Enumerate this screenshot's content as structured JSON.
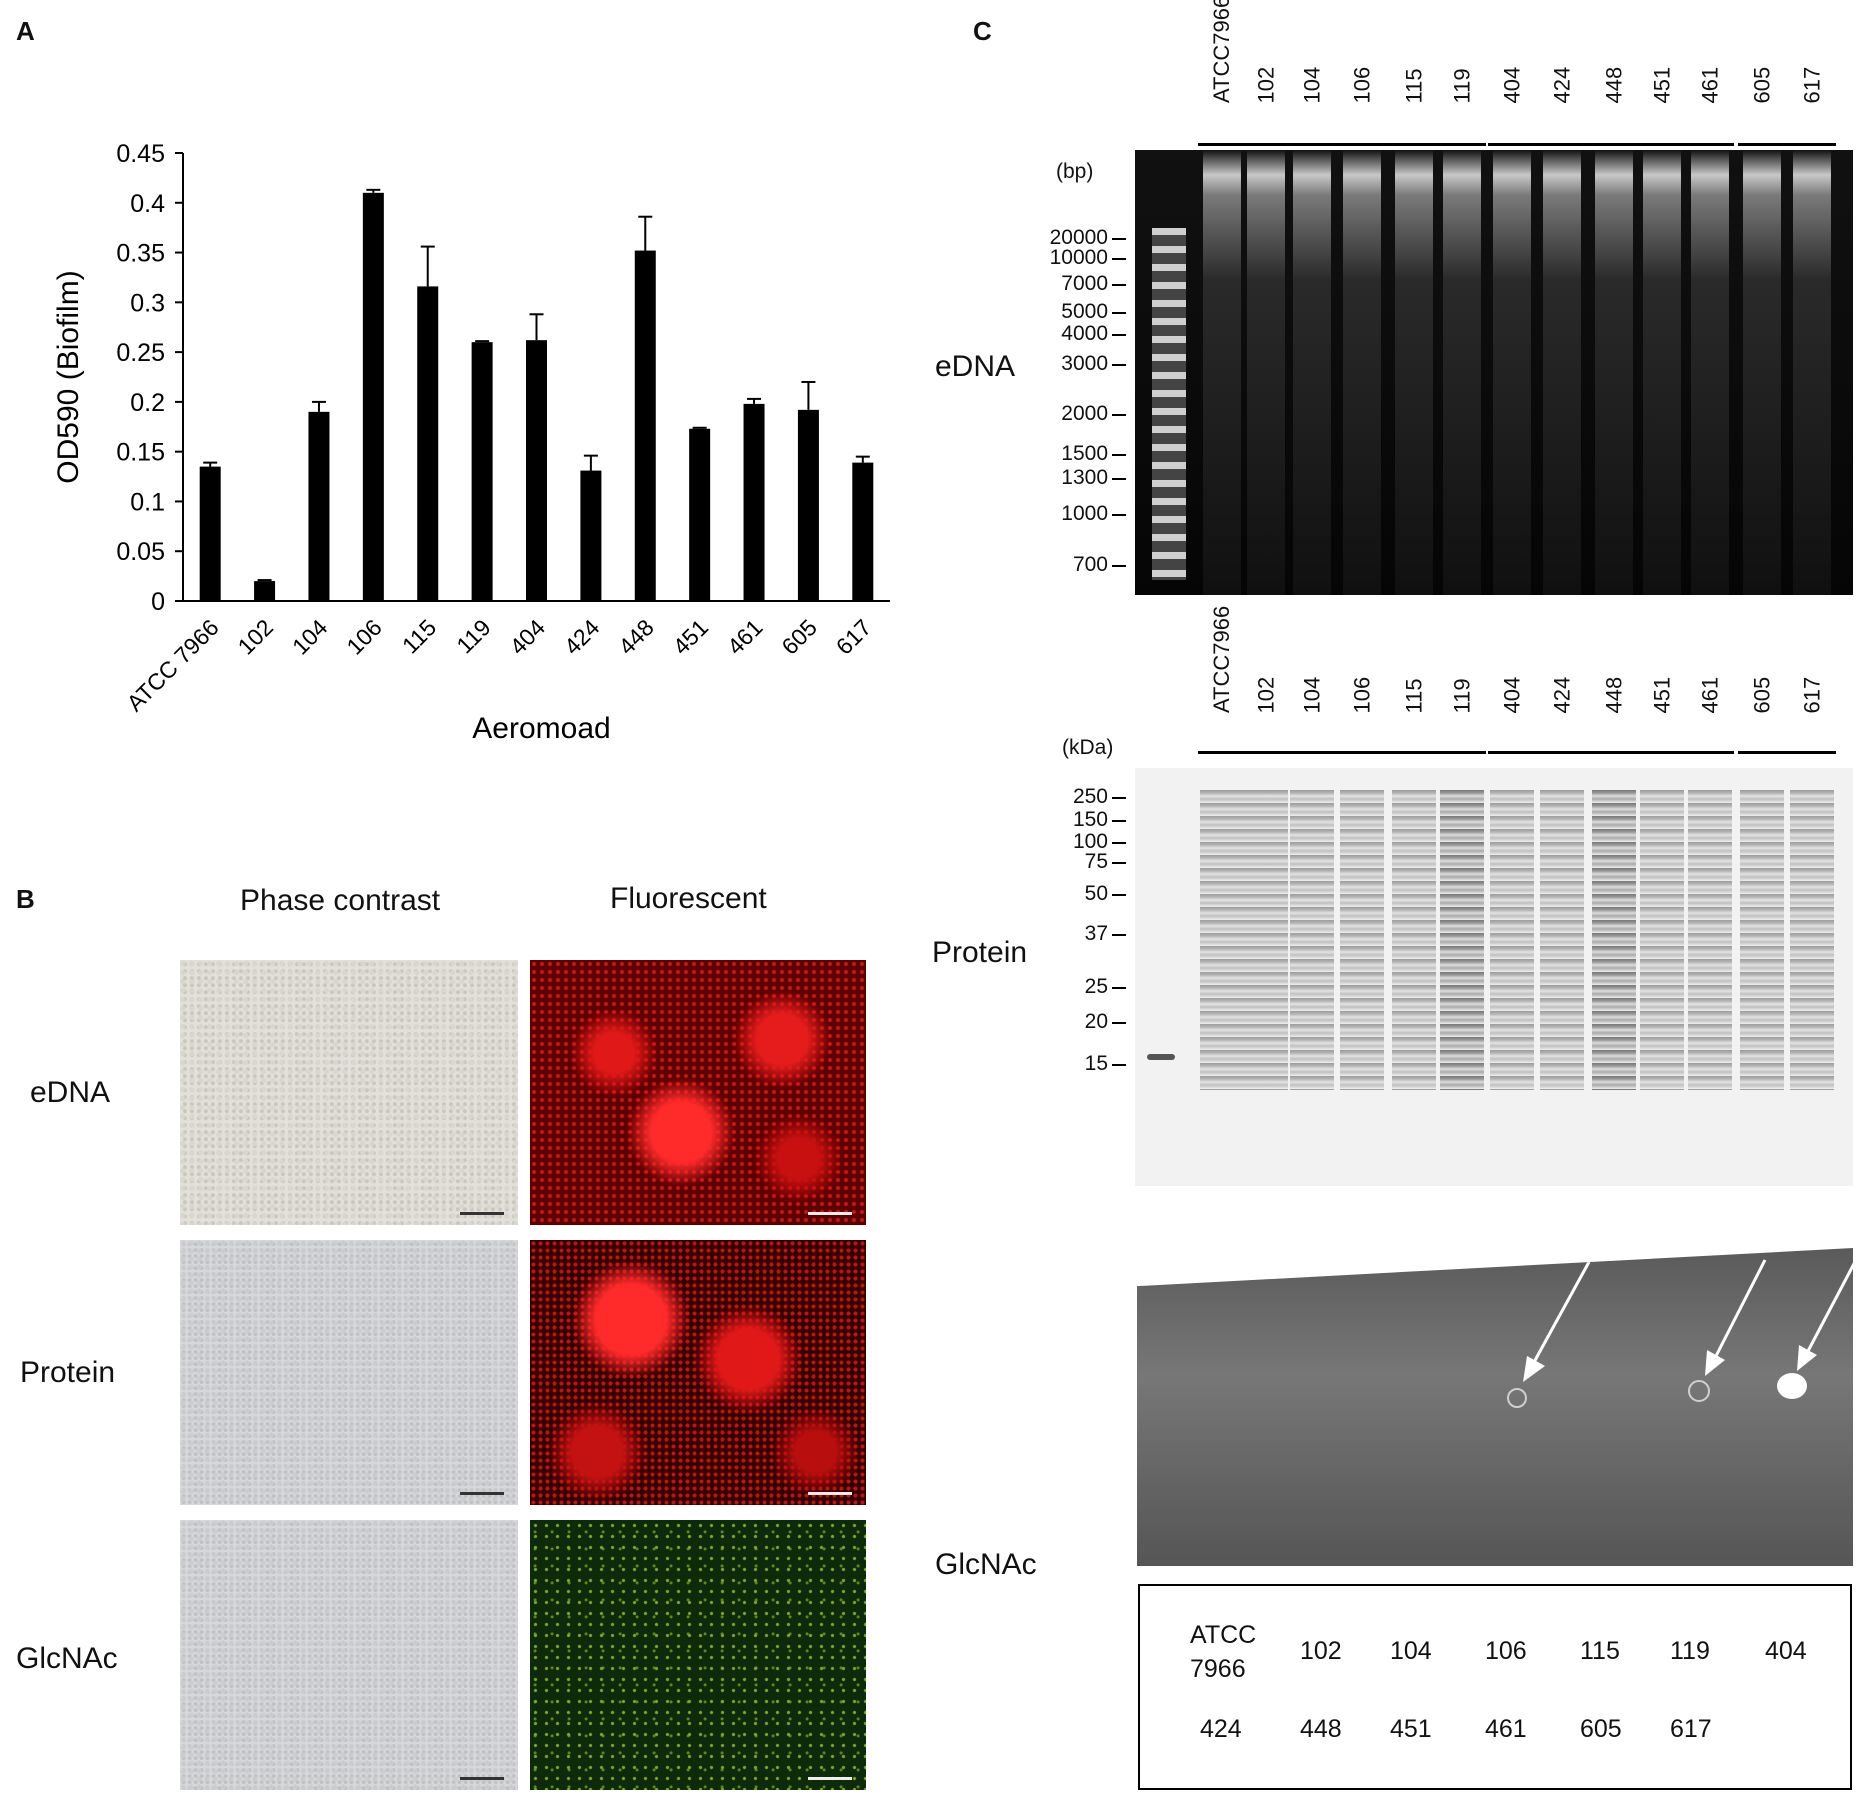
{
  "panels": {
    "a": "A",
    "b": "B",
    "c": "C"
  },
  "chart_data": {
    "type": "bar",
    "categories": [
      "ATCC 7966",
      "102",
      "104",
      "106",
      "115",
      "119",
      "404",
      "424",
      "448",
      "451",
      "461",
      "605",
      "617"
    ],
    "values": [
      0.135,
      0.02,
      0.19,
      0.41,
      0.316,
      0.26,
      0.262,
      0.131,
      0.352,
      0.173,
      0.198,
      0.192,
      0.139
    ],
    "errors": [
      0.004,
      0.0,
      0.01,
      0.003,
      0.04,
      0.0,
      0.026,
      0.015,
      0.034,
      0.0,
      0.005,
      0.028,
      0.006
    ],
    "xlabel": "Aeromoad",
    "ylabel": "OD590 (Biofilm)",
    "ylim": [
      0,
      0.45
    ],
    "yticks": [
      "0",
      "0.05",
      "0.1",
      "0.15",
      "0.2",
      "0.25",
      "0.3",
      "0.35",
      "0.4",
      "0.45"
    ],
    "grid": false,
    "bar_color": "#000000"
  },
  "panel_b": {
    "col_headers": [
      "Phase contrast",
      "Fluorescent"
    ],
    "row_labels": [
      "eDNA",
      "Protein",
      "GlcNAc"
    ]
  },
  "panel_c": {
    "edna": {
      "label": "eDNA",
      "unit": "(bp)",
      "ladder": [
        "20000",
        "10000",
        "7000",
        "5000",
        "4000",
        "3000",
        "2000",
        "1500",
        "1300",
        "1000",
        "700"
      ]
    },
    "protein": {
      "label": "Protein",
      "unit": "(kDa)",
      "ladder": [
        "250",
        "150",
        "100",
        "75",
        "50",
        "37",
        "25",
        "20",
        "15"
      ]
    },
    "glcnac": {
      "label": "GlcNAc"
    },
    "lanes": [
      "ATCC7966",
      "102",
      "104",
      "106",
      "115",
      "119",
      "404",
      "424",
      "448",
      "451",
      "461",
      "605",
      "617"
    ],
    "legend_row1": [
      "ATCC\n7966",
      "102",
      "104",
      "106",
      "115",
      "119",
      "404"
    ],
    "legend_row2": [
      "424",
      "448",
      "451",
      "461",
      "605",
      "617"
    ]
  }
}
